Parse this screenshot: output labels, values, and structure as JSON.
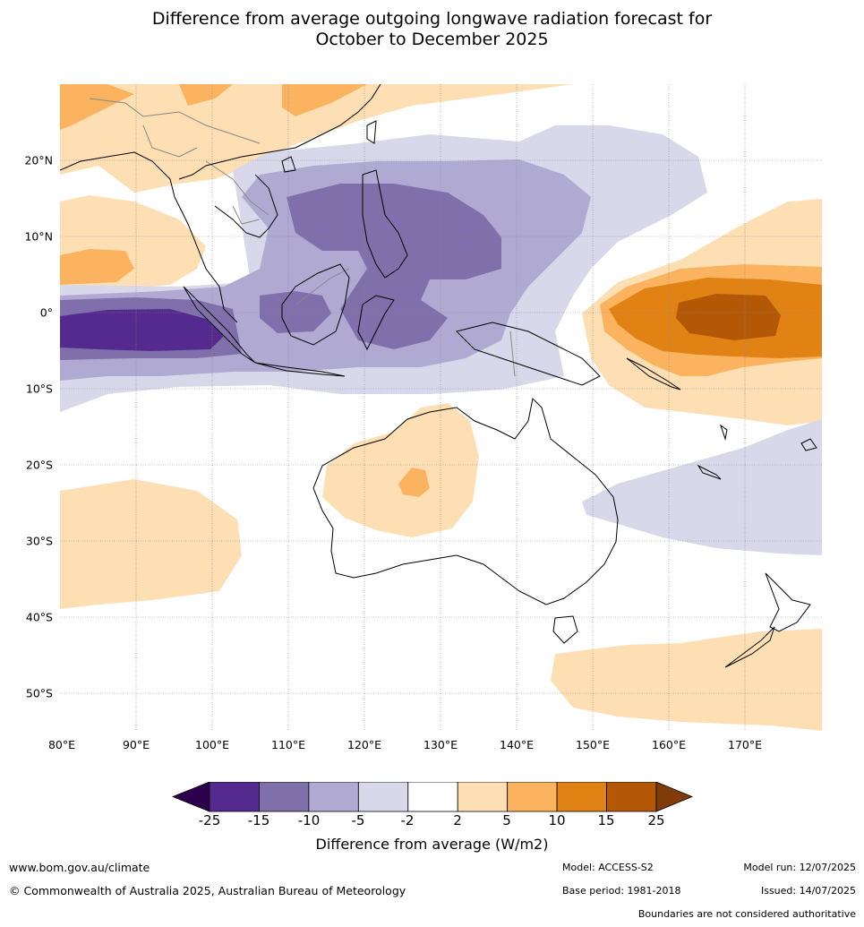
{
  "title_line1": "Difference from average outgoing longwave radiation forecast for",
  "title_line2": "October to December 2025",
  "lat_labels": [
    "20°N",
    "10°N",
    "0°",
    "10°S",
    "20°S",
    "30°S",
    "40°S",
    "50°S"
  ],
  "lon_labels": [
    "80°E",
    "90°E",
    "100°E",
    "110°E",
    "120°E",
    "130°E",
    "140°E",
    "150°E",
    "160°E",
    "170°E"
  ],
  "colorbar": {
    "ticks": [
      "-25",
      "-15",
      "-10",
      "-5",
      "-2",
      "2",
      "5",
      "10",
      "15",
      "25"
    ],
    "colors": [
      "#552a8e",
      "#7f6fab",
      "#b0aad2",
      "#d8d8ea",
      "#ffffff",
      "#fddfb3",
      "#fbb35f",
      "#e08214",
      "#b35806"
    ],
    "under_color": "#2d004b",
    "over_color": "#7f3b08",
    "label": "Difference from average (W/m2)"
  },
  "footer": {
    "website": "www.bom.gov.au/climate",
    "copyright": "© Commonwealth of Australia 2025, Australian Bureau of Meteorology",
    "model": "Model: ACCESS-S2",
    "base_period": "Base period: 1981-2018",
    "model_run": "Model run: 12/07/2025",
    "issued": "Issued: 14/07/2025",
    "disclaimer": "Boundaries are not considered authoritative"
  }
}
